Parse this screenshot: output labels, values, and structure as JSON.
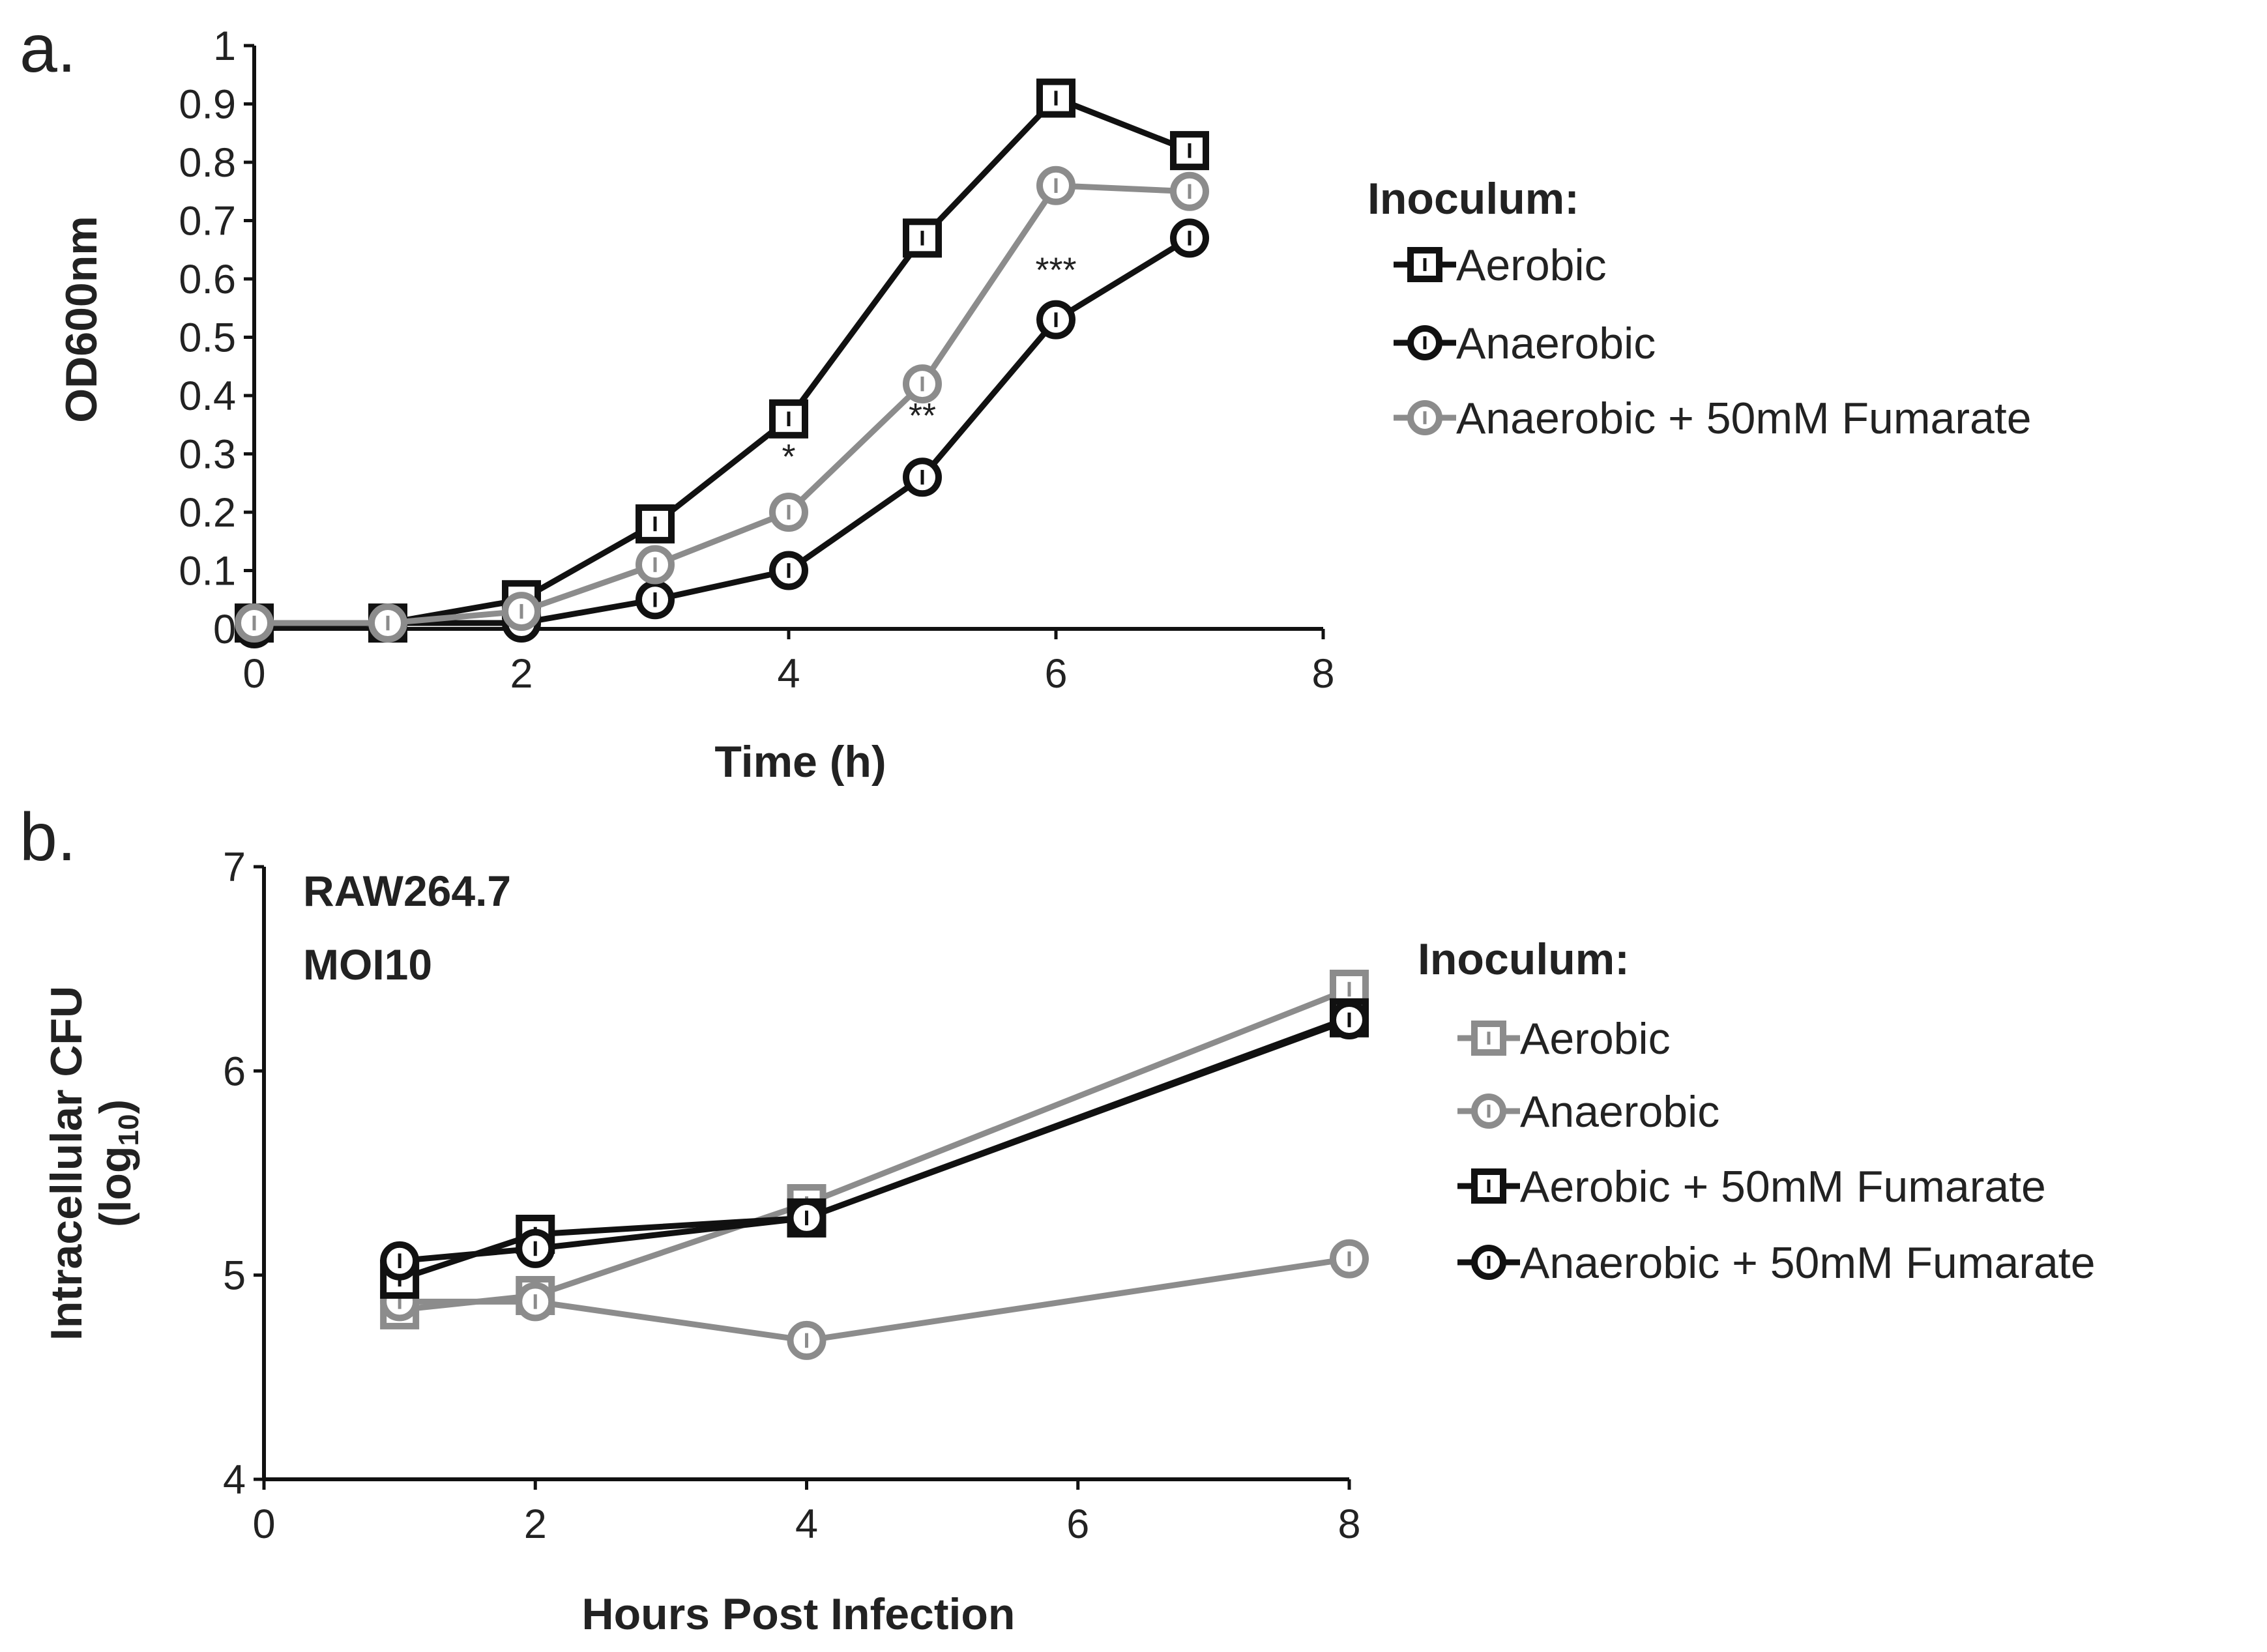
{
  "colors": {
    "black": "#111111",
    "gray": "#8c8c8c",
    "background": "#ffffff"
  },
  "chart_data": [
    {
      "type": "line",
      "panel_label": "a.",
      "xlabel": "Time (h)",
      "ylabel": "OD600nm",
      "xlim": [
        0,
        8
      ],
      "ylim": [
        0,
        1
      ],
      "x_ticks": [
        "0",
        "2",
        "4",
        "6",
        "8"
      ],
      "y_ticks": [
        "0",
        "0.1",
        "0.2",
        "0.3",
        "0.4",
        "0.5",
        "0.6",
        "0.7",
        "0.8",
        "0.9",
        "1"
      ],
      "legend_title": "Inoculum:",
      "series": [
        {
          "name": "Aerobic",
          "marker": "square",
          "color": "#111111",
          "x": [
            0,
            1,
            2,
            3,
            4,
            5,
            6,
            7
          ],
          "values": [
            0.01,
            0.01,
            0.05,
            0.18,
            0.36,
            0.67,
            0.91,
            0.82
          ]
        },
        {
          "name": "Anaerobic",
          "marker": "circle",
          "color": "#111111",
          "x": [
            0,
            1,
            2,
            3,
            4,
            5,
            6,
            7
          ],
          "values": [
            0.0,
            0.01,
            0.01,
            0.05,
            0.1,
            0.26,
            0.53,
            0.67
          ]
        },
        {
          "name": "Anaerobic + 50mM Fumarate",
          "marker": "circle",
          "color": "#8c8c8c",
          "x": [
            0,
            1,
            2,
            3,
            4,
            5,
            6,
            7
          ],
          "values": [
            0.01,
            0.01,
            0.03,
            0.11,
            0.2,
            0.42,
            0.76,
            0.75
          ]
        }
      ],
      "significance": [
        {
          "x": 4,
          "y": 0.275,
          "label": "*"
        },
        {
          "x": 5,
          "y": 0.345,
          "label": "**"
        },
        {
          "x": 6,
          "y": 0.595,
          "label": "***"
        }
      ]
    },
    {
      "type": "line",
      "panel_label": "b.",
      "xlabel": "Hours Post Infection",
      "ylabel": "Intracellular CFU",
      "ylabel2": "(log",
      "ylabel2_sub": "10",
      "ylabel2_end": ")",
      "annotation": [
        "RAW264.7",
        "MOI10"
      ],
      "xlim": [
        0,
        8
      ],
      "ylim": [
        4,
        7
      ],
      "x_ticks": [
        "0",
        "2",
        "4",
        "6",
        "8"
      ],
      "y_ticks": [
        "4",
        "5",
        "6",
        "7"
      ],
      "legend_title": "Inoculum:",
      "series": [
        {
          "name": "Aerobic",
          "marker": "square",
          "color": "#8c8c8c",
          "x": [
            1,
            2,
            4,
            8
          ],
          "values": [
            4.83,
            4.9,
            5.35,
            6.4
          ]
        },
        {
          "name": "Anaerobic",
          "marker": "circle",
          "color": "#8c8c8c",
          "x": [
            1,
            2,
            4,
            8
          ],
          "values": [
            4.87,
            4.87,
            4.68,
            5.08
          ]
        },
        {
          "name": "Aerobic + 50mM Fumarate",
          "marker": "square",
          "color": "#111111",
          "x": [
            1,
            2,
            4,
            8
          ],
          "values": [
            4.98,
            5.2,
            5.28,
            6.26
          ]
        },
        {
          "name": "Anaerobic + 50mM Fumarate",
          "marker": "circle",
          "color": "#111111",
          "x": [
            1,
            2,
            4,
            8
          ],
          "values": [
            5.07,
            5.13,
            5.28,
            6.25
          ]
        }
      ]
    }
  ]
}
